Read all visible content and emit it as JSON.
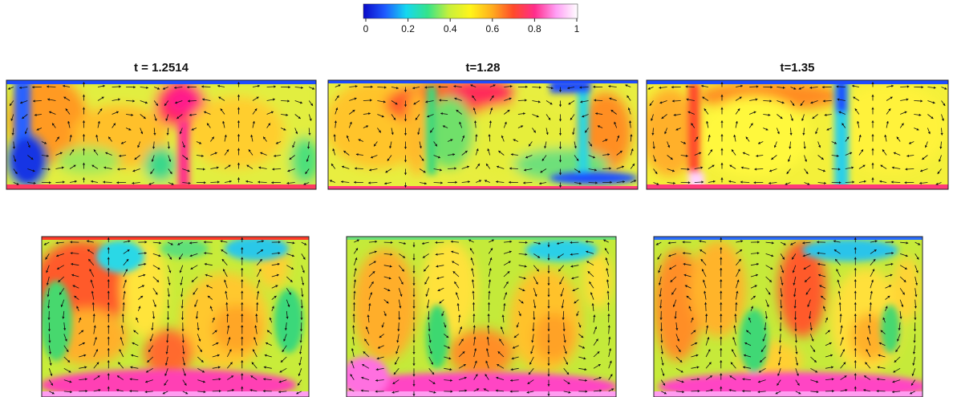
{
  "colorbar": {
    "ticks": [
      "0",
      "0.2",
      "0.4",
      "0.6",
      "0.8",
      "1"
    ],
    "tick_values": [
      0,
      0.2,
      0.4,
      0.6,
      0.8,
      1.0
    ],
    "range": [
      0,
      1
    ],
    "colors": [
      "#0a0ac8",
      "#1e5aff",
      "#16d8f0",
      "#35e38a",
      "#c8f03a",
      "#fff41a",
      "#ffae1e",
      "#ff4a2a",
      "#ff2d8c",
      "#ff9ff5",
      "#ffffff"
    ]
  },
  "panels": [
    {
      "title": "t = 1.2514"
    },
    {
      "title": "t=1.28"
    },
    {
      "title": "t=1.35"
    }
  ]
}
